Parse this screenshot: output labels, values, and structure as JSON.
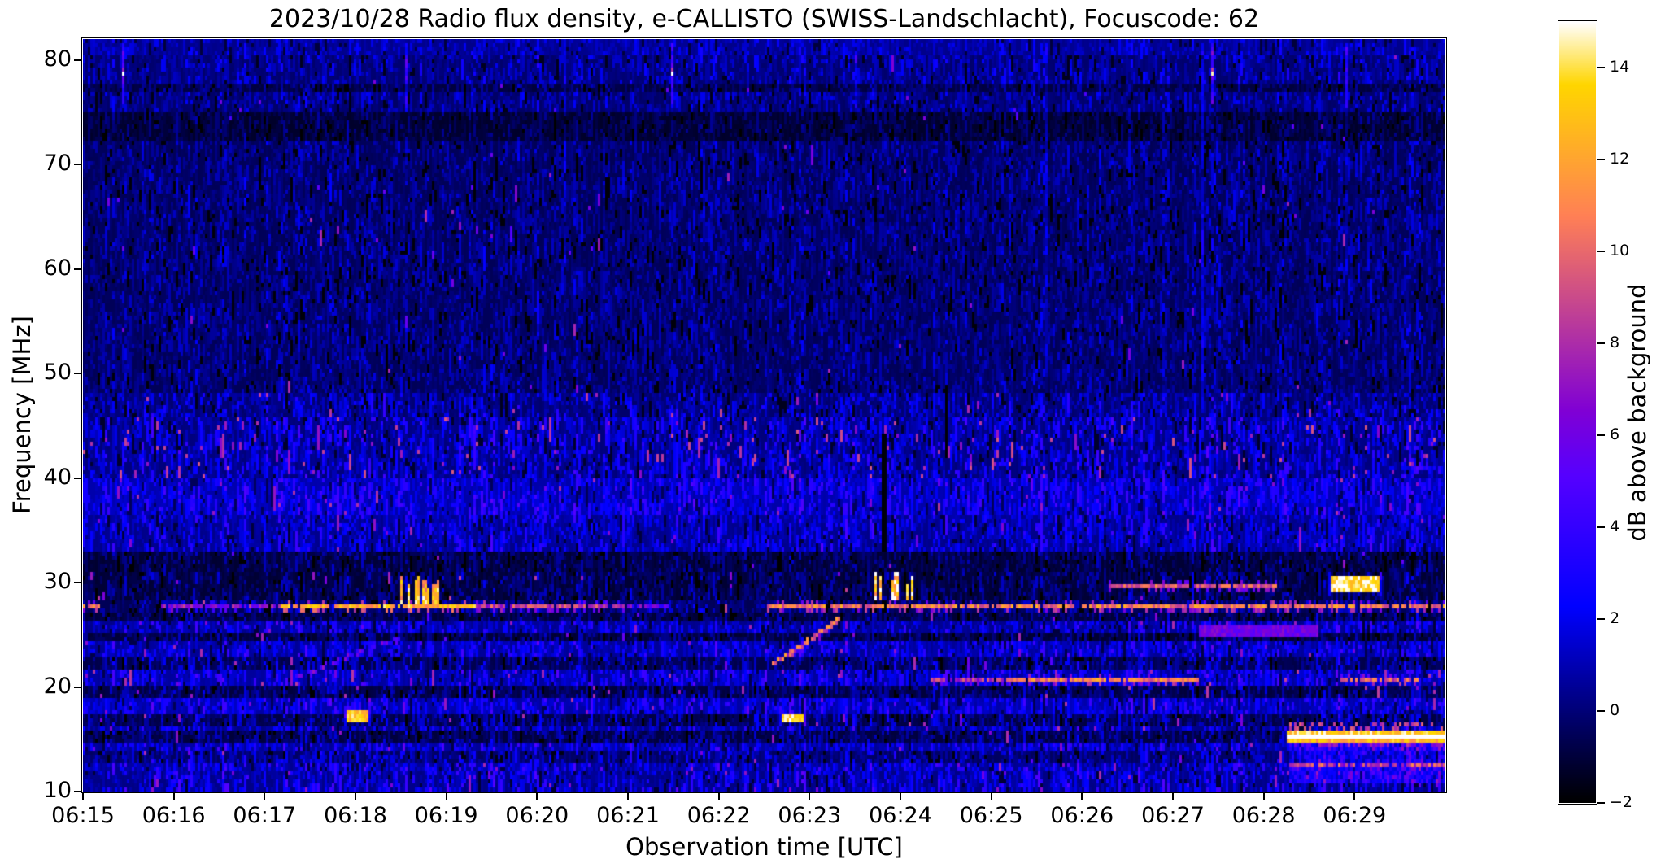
{
  "title": "2023/10/28  Radio flux density, e-CALLISTO (SWISS-Landschlacht), Focuscode: 62",
  "axes": {
    "xlabel": "Observation time [UTC]",
    "ylabel": "Frequency [MHz]",
    "x_tick_labels": [
      "06:15",
      "06:16",
      "06:17",
      "06:18",
      "06:19",
      "06:20",
      "06:21",
      "06:22",
      "06:23",
      "06:24",
      "06:25",
      "06:26",
      "06:27",
      "06:28",
      "06:29"
    ],
    "y_tick_labels": [
      "80",
      "70",
      "60",
      "50",
      "40",
      "30",
      "20",
      "10"
    ]
  },
  "colorbar": {
    "label": "dB above background",
    "tick_labels": [
      "14",
      "12",
      "10",
      "8",
      "6",
      "4",
      "2",
      "0",
      "−2"
    ],
    "tick_values": [
      14,
      12,
      10,
      8,
      6,
      4,
      2,
      0,
      -2
    ],
    "vmin": -2,
    "vmax": 15,
    "colormap": "gnuplot2"
  },
  "chart_data": {
    "type": "heatmap",
    "subtype": "radio-spectrogram",
    "title": "2023/10/28  Radio flux density, e-CALLISTO (SWISS-Landschlacht), Focuscode: 62",
    "xlabel": "Observation time [UTC]",
    "ylabel": "Frequency [MHz]",
    "colorbar_label": "dB above background",
    "x_range_minutes": [
      15,
      30
    ],
    "x_tick_minutes": [
      15,
      16,
      17,
      18,
      19,
      20,
      21,
      22,
      23,
      24,
      25,
      26,
      27,
      28,
      29
    ],
    "freq_range_mhz": [
      10,
      82
    ],
    "value_range_db": [
      -2,
      15
    ],
    "grid": false,
    "legend": "none",
    "background_bands": [
      [
        80.6,
        82.0,
        0.3,
        1.8,
        0.001,
        5.0
      ],
      [
        77.9,
        80.6,
        -0.2,
        2.4,
        0.002,
        5.0
      ],
      [
        76.8,
        77.9,
        -1.0,
        1.8,
        0.002,
        4.0
      ],
      [
        75.0,
        76.8,
        -0.3,
        2.2,
        0.002,
        4.0
      ],
      [
        72.2,
        75.0,
        -1.3,
        1.6,
        0.004,
        3.5
      ],
      [
        48.0,
        72.2,
        -0.55,
        2.0,
        0.0035,
        5.0
      ],
      [
        46.0,
        48.0,
        -0.2,
        2.8,
        0.012,
        6.0
      ],
      [
        40.0,
        46.0,
        0.05,
        3.4,
        0.035,
        6.5
      ],
      [
        36.5,
        40.0,
        0.8,
        3.2,
        0.012,
        5.5
      ],
      [
        33.0,
        36.5,
        0.3,
        3.0,
        0.008,
        5.0
      ],
      [
        31.0,
        33.0,
        -1.2,
        2.0,
        0.004,
        5.0
      ],
      [
        28.4,
        31.0,
        -1.15,
        2.2,
        0.006,
        6.0
      ],
      [
        27.3,
        28.4,
        -0.6,
        2.2,
        0.01,
        6.0
      ],
      [
        26.3,
        27.3,
        -1.1,
        2.2,
        0.008,
        5.0
      ],
      [
        25.3,
        26.3,
        0.3,
        3.0,
        0.01,
        5.0
      ],
      [
        24.3,
        25.3,
        -1.2,
        2.2,
        0.006,
        5.0
      ],
      [
        23.0,
        24.3,
        0.5,
        3.2,
        0.012,
        5.0
      ],
      [
        21.8,
        23.0,
        -0.8,
        2.8,
        0.01,
        5.0
      ],
      [
        20.0,
        21.8,
        0.6,
        3.4,
        0.02,
        6.0
      ],
      [
        18.8,
        20.0,
        -1.0,
        2.6,
        0.015,
        6.0
      ],
      [
        17.5,
        18.8,
        0.7,
        3.3,
        0.012,
        5.5
      ],
      [
        16.3,
        17.5,
        -0.9,
        2.8,
        0.01,
        5.5
      ],
      [
        15.8,
        16.3,
        0.2,
        3.0,
        0.012,
        6.0
      ],
      [
        14.8,
        15.8,
        -1.0,
        2.4,
        0.008,
        5.0
      ],
      [
        13.8,
        14.8,
        0.5,
        3.2,
        0.012,
        5.0
      ],
      [
        12.8,
        13.8,
        -0.4,
        3.0,
        0.01,
        5.0
      ],
      [
        11.8,
        12.8,
        0.4,
        3.4,
        0.012,
        5.0
      ],
      [
        10.0,
        11.8,
        0.2,
        3.5,
        0.015,
        5.0
      ]
    ],
    "regions": [
      {
        "t0": 28.3,
        "t1": 30.0,
        "f0": 10.8,
        "f1": 14.7,
        "dv": 2.2
      },
      {
        "t0": 28.3,
        "t1": 30.0,
        "f0": 15.8,
        "f1": 16.5,
        "spk": 0.3,
        "amp": 7.5
      }
    ],
    "features": {
      "line28": {
        "f": 27.9,
        "segments": [
          [
            15.0,
            15.18,
            10
          ],
          [
            15.9,
            17.2,
            6.5
          ],
          [
            17.2,
            19.35,
            12
          ],
          [
            19.35,
            21.0,
            8
          ],
          [
            21.0,
            21.45,
            5
          ],
          [
            22.55,
            29.98,
            10
          ]
        ]
      },
      "row206": {
        "f": 20.65,
        "segments": [
          [
            24.35,
            25.2,
            7.5
          ],
          [
            25.2,
            27.3,
            10
          ],
          [
            28.85,
            29.7,
            9
          ]
        ]
      },
      "row296": {
        "f": 29.65,
        "segments": [
          [
            26.3,
            28.15,
            9
          ]
        ]
      },
      "burst_clusters": [
        {
          "t0": 18.5,
          "t1": 19.0,
          "f0": 28.1,
          "f1": 30.9,
          "v": 13,
          "n": 14
        },
        {
          "t0": 23.72,
          "t1": 24.12,
          "f0": 28.4,
          "f1": 31.0,
          "v": 14,
          "n": 10
        }
      ],
      "drift_lines": [
        {
          "t0": 22.6,
          "f0": 22.2,
          "t1": 23.3,
          "f1": 26.4,
          "v": 10
        },
        {
          "t0": 17.35,
          "f0": 21.0,
          "t1": 18.45,
          "f1": 24.6,
          "v": 5.5
        }
      ],
      "blobs": [
        {
          "t0": 28.75,
          "t1": 29.27,
          "f0": 29.4,
          "f1": 30.4,
          "v": 14
        },
        {
          "t0": 17.93,
          "t1": 18.12,
          "f0": 16.9,
          "f1": 17.6,
          "v": 13
        },
        {
          "t0": 22.7,
          "t1": 22.92,
          "f0": 16.7,
          "f1": 17.3,
          "v": 14
        },
        {
          "t0": 27.3,
          "t1": 28.6,
          "f0": 24.9,
          "f1": 25.6,
          "v": 6,
          "soft": true
        }
      ],
      "line153": {
        "f": 15.35,
        "t0": 28.27,
        "t1": 30.0,
        "v": 17
      },
      "row126": {
        "f": 12.6,
        "t0": 28.3,
        "t1": 30.0,
        "v": 9
      },
      "calibration_dots": [
        {
          "t": 15.45,
          "f": 78.7,
          "v": 14.8
        },
        {
          "t": 21.48,
          "f": 78.7,
          "v": 14.8
        },
        {
          "t": 27.42,
          "f": 78.7,
          "v": 13.5
        }
      ],
      "top_streaks": [
        {
          "t": 15.45,
          "dv": 2.5
        },
        {
          "t": 18.55,
          "dv": 2.0
        },
        {
          "t": 21.48,
          "dv": 2.2
        },
        {
          "t": 23.5,
          "dv": 1.8
        },
        {
          "t": 27.42,
          "dv": 2.0
        },
        {
          "t": 28.92,
          "dv": 2.2
        }
      ],
      "dark_columns": [
        {
          "t": 23.8,
          "f0": 33,
          "f1": 44,
          "w": 2
        },
        {
          "t": 24.5,
          "f0": 42,
          "f1": 49,
          "w": 1
        }
      ],
      "faint_columns": [
        {
          "t": 27.33,
          "f0": 44,
          "f1": 81.5,
          "dv": 1.6
        },
        {
          "t": 20.3,
          "f0": 58,
          "f1": 81.5,
          "dv": 1.1
        },
        {
          "t": 25.6,
          "f0": 50,
          "f1": 81.5,
          "dv": 0.9
        },
        {
          "t": 28.92,
          "f0": 60,
          "f1": 81.5,
          "dv": 1.0
        }
      ]
    }
  }
}
